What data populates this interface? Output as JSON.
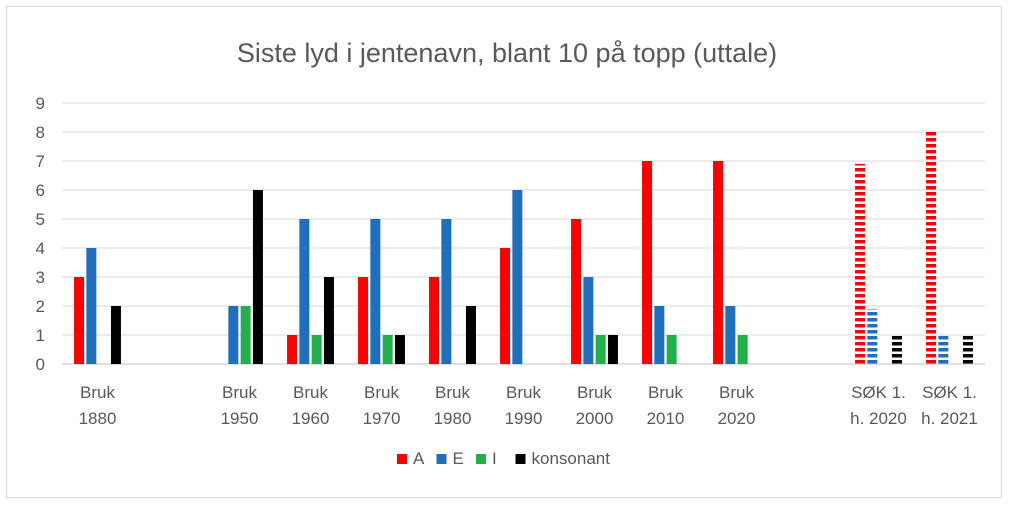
{
  "chart_data": {
    "type": "bar",
    "title": "Siste lyd i jentenavn, blant 10 på topp (uttale)",
    "xlabel": "",
    "ylabel": "",
    "ylim": [
      0,
      9
    ],
    "yticks": [
      "0",
      "1",
      "2",
      "3",
      "4",
      "5",
      "6",
      "7",
      "8",
      "9"
    ],
    "grid": true,
    "legend_position": "bottom",
    "categories": [
      [
        "Bruk",
        "1880"
      ],
      [
        "",
        ""
      ],
      [
        "Bruk",
        "1950"
      ],
      [
        "Bruk",
        "1960"
      ],
      [
        "Bruk",
        "1970"
      ],
      [
        "Bruk",
        "1980"
      ],
      [
        "Bruk",
        "1990"
      ],
      [
        "Bruk",
        "2000"
      ],
      [
        "Bruk",
        "2010"
      ],
      [
        "Bruk",
        "2020"
      ],
      [
        "",
        ""
      ],
      [
        "SØK 1.",
        "h. 2020"
      ],
      [
        "SØK 1.",
        "h. 2021"
      ]
    ],
    "dashed_categories": [
      11,
      12
    ],
    "series": [
      {
        "name": "A",
        "color": "#ff0000",
        "values": [
          3,
          null,
          0,
          1,
          3,
          3,
          4,
          5,
          7,
          7,
          null,
          6.9,
          8
        ]
      },
      {
        "name": "E",
        "color": "#1f6fbf",
        "values": [
          4,
          null,
          2,
          5,
          5,
          5,
          6,
          3,
          2,
          2,
          null,
          1.9,
          1
        ]
      },
      {
        "name": "I",
        "color": "#22b04b",
        "values": [
          0,
          null,
          2,
          1,
          1,
          0,
          0,
          1,
          1,
          1,
          null,
          0,
          0
        ]
      },
      {
        "name": "konsonant",
        "color": "#000000",
        "values": [
          2,
          null,
          6,
          3,
          1,
          2,
          0,
          1,
          0,
          0,
          null,
          1,
          1
        ]
      }
    ]
  }
}
